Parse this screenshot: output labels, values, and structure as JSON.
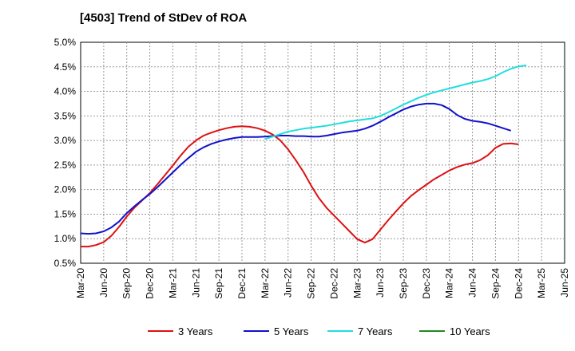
{
  "chart_data": {
    "type": "line",
    "title": "[4503]  Trend of StDev of ROA",
    "xlabel": "",
    "ylabel": "",
    "ylim": [
      0.5,
      5.0
    ],
    "y_ticks": [
      "0.5%",
      "1.0%",
      "1.5%",
      "2.0%",
      "2.5%",
      "3.0%",
      "3.5%",
      "4.0%",
      "4.5%",
      "5.0%"
    ],
    "y_tick_values": [
      0.5,
      1.0,
      1.5,
      2.0,
      2.5,
      3.0,
      3.5,
      4.0,
      4.5,
      5.0
    ],
    "x_ticks": [
      "Mar-20",
      "Jun-20",
      "Sep-20",
      "Dec-20",
      "Mar-21",
      "Jun-21",
      "Sep-21",
      "Dec-21",
      "Mar-22",
      "Jun-22",
      "Sep-22",
      "Dec-22",
      "Mar-23",
      "Jun-23",
      "Sep-23",
      "Dec-23",
      "Mar-24",
      "Jun-24",
      "Sep-24",
      "Dec-24",
      "Mar-25",
      "Jun-25"
    ],
    "grid": true,
    "legend_position": "bottom",
    "series": [
      {
        "name": "3 Years",
        "color": "#dd1111",
        "start_index": 0,
        "values": [
          0.84,
          0.84,
          0.87,
          0.93,
          1.06,
          1.24,
          1.45,
          1.63,
          1.78,
          1.93,
          2.11,
          2.3,
          2.49,
          2.69,
          2.87,
          3.0,
          3.1,
          3.16,
          3.21,
          3.25,
          3.28,
          3.29,
          3.28,
          3.25,
          3.2,
          3.12,
          3.0,
          2.82,
          2.6,
          2.36,
          2.08,
          1.83,
          1.63,
          1.47,
          1.31,
          1.15,
          0.99,
          0.92,
          0.99,
          1.18,
          1.37,
          1.55,
          1.72,
          1.87,
          1.99,
          2.1,
          2.21,
          2.3,
          2.39,
          2.46,
          2.51,
          2.54,
          2.6,
          2.7,
          2.85,
          2.93,
          2.94,
          2.92
        ]
      },
      {
        "name": "5 Years",
        "color": "#1111cc",
        "start_index": 0,
        "values": [
          1.11,
          1.1,
          1.11,
          1.15,
          1.23,
          1.35,
          1.52,
          1.66,
          1.79,
          1.91,
          2.05,
          2.2,
          2.35,
          2.5,
          2.64,
          2.77,
          2.86,
          2.93,
          2.98,
          3.02,
          3.05,
          3.07,
          3.07,
          3.07,
          3.08,
          3.09,
          3.1,
          3.1,
          3.09,
          3.09,
          3.08,
          3.08,
          3.1,
          3.13,
          3.16,
          3.18,
          3.2,
          3.24,
          3.3,
          3.38,
          3.47,
          3.55,
          3.63,
          3.69,
          3.73,
          3.75,
          3.75,
          3.72,
          3.64,
          3.52,
          3.44,
          3.4,
          3.38,
          3.35,
          3.3,
          3.25,
          3.2
        ]
      },
      {
        "name": "7 Years",
        "color": "#22dddd",
        "start_index": 24,
        "values": [
          3.03,
          3.08,
          3.13,
          3.18,
          3.21,
          3.24,
          3.26,
          3.28,
          3.3,
          3.33,
          3.36,
          3.39,
          3.41,
          3.43,
          3.45,
          3.5,
          3.57,
          3.65,
          3.73,
          3.8,
          3.87,
          3.93,
          3.98,
          4.02,
          4.06,
          4.1,
          4.14,
          4.18,
          4.21,
          4.25,
          4.31,
          4.39,
          4.46,
          4.51,
          4.53
        ]
      },
      {
        "name": "10 Years",
        "color": "#228822",
        "start_index": 0,
        "values": []
      }
    ]
  }
}
